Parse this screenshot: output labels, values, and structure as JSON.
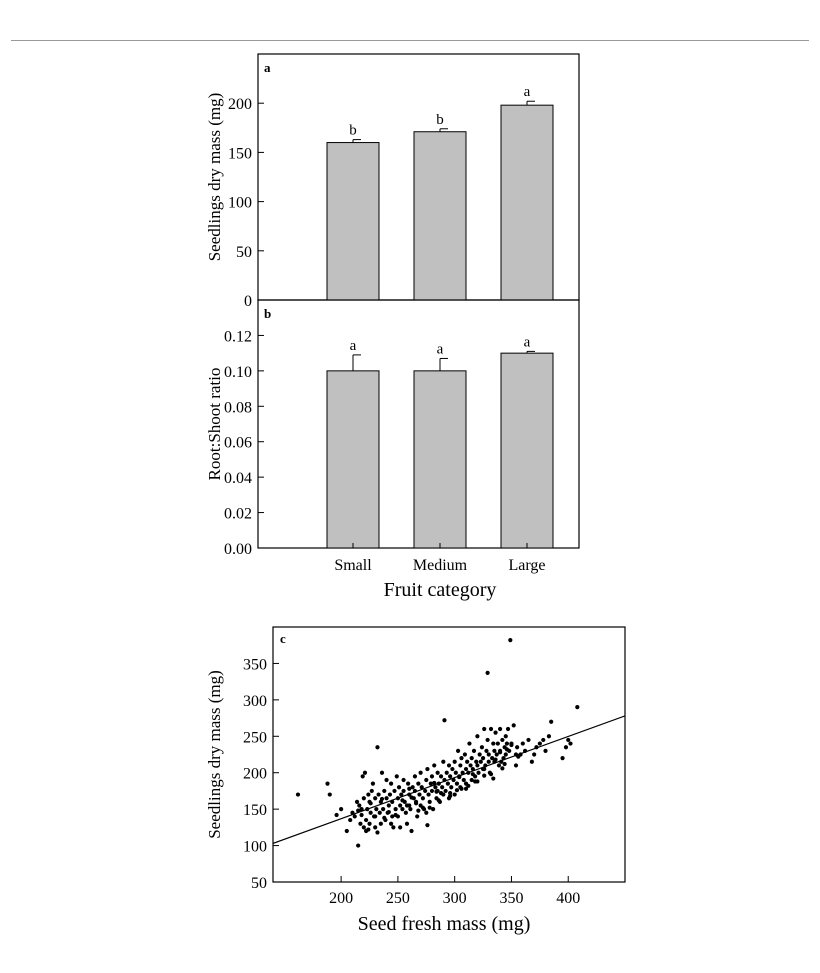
{
  "chart_data": [
    {
      "type": "bar",
      "panel_label": "a",
      "categories": [
        "Small",
        "Medium",
        "Large"
      ],
      "values": [
        160,
        171,
        198
      ],
      "errors": [
        3,
        3,
        4
      ],
      "letters": [
        "b",
        "b",
        "a"
      ],
      "ylabel": "Seedlings dry mass (mg)",
      "ylim": [
        0,
        250
      ],
      "yticks": [
        0,
        50,
        100,
        150,
        200
      ]
    },
    {
      "type": "bar",
      "panel_label": "b",
      "categories": [
        "Small",
        "Medium",
        "Large"
      ],
      "values": [
        0.1,
        0.1,
        0.11
      ],
      "errors": [
        0.009,
        0.007,
        0.001
      ],
      "letters": [
        "a",
        "a",
        "a"
      ],
      "ylabel": "Root:Shoot ratio",
      "xlabel": "Fruit category",
      "ylim": [
        0,
        0.14
      ],
      "yticks": [
        "0.00",
        "0.02",
        "0.04",
        "0.06",
        "0.08",
        "0.10",
        "0.12"
      ]
    },
    {
      "type": "scatter",
      "panel_label": "c",
      "xlabel": "Seed fresh mass (mg)",
      "ylabel": "Seedlings dry mass (mg)",
      "xlim": [
        140,
        450
      ],
      "ylim": [
        50,
        400
      ],
      "xticks": [
        200,
        250,
        300,
        350,
        400
      ],
      "yticks": [
        50,
        100,
        150,
        200,
        250,
        300,
        350
      ],
      "fit_line": {
        "x": [
          140,
          450
        ],
        "y": [
          103,
          278
        ]
      },
      "x": [
        162,
        188,
        190,
        196,
        200,
        205,
        208,
        210,
        212,
        214,
        215,
        216,
        217,
        218,
        219,
        220,
        220,
        221,
        222,
        223,
        224,
        225,
        225,
        226,
        227,
        228,
        229,
        230,
        230,
        231,
        232,
        233,
        234,
        235,
        235,
        236,
        237,
        238,
        239,
        240,
        240,
        241,
        242,
        243,
        244,
        245,
        245,
        246,
        247,
        248,
        249,
        250,
        250,
        251,
        252,
        253,
        254,
        255,
        255,
        256,
        257,
        258,
        259,
        260,
        260,
        261,
        262,
        263,
        264,
        265,
        265,
        266,
        267,
        268,
        269,
        270,
        270,
        271,
        272,
        273,
        274,
        275,
        275,
        276,
        277,
        278,
        279,
        280,
        280,
        281,
        282,
        283,
        284,
        285,
        285,
        286,
        287,
        288,
        289,
        290,
        290,
        291,
        292,
        293,
        294,
        295,
        295,
        296,
        297,
        298,
        299,
        300,
        300,
        301,
        302,
        303,
        304,
        305,
        305,
        306,
        307,
        308,
        309,
        310,
        310,
        311,
        312,
        313,
        314,
        315,
        315,
        316,
        317,
        318,
        319,
        320,
        320,
        321,
        322,
        323,
        324,
        325,
        325,
        326,
        327,
        328,
        329,
        330,
        330,
        331,
        332,
        333,
        334,
        335,
        335,
        336,
        337,
        338,
        339,
        340,
        340,
        341,
        342,
        343,
        344,
        345,
        345,
        346,
        347,
        348,
        350,
        352,
        354,
        355,
        358,
        360,
        362,
        365,
        368,
        370,
        372,
        375,
        378,
        380,
        383,
        385,
        395,
        398,
        400,
        402,
        408,
        222,
        230,
        232,
        244,
        252,
        258,
        268,
        276,
        286,
        296,
        306,
        316,
        326,
        336,
        346,
        349,
        291,
        329,
        340,
        215,
        238,
        262,
        284,
        312,
        334,
        356,
        224,
        248,
        272,
        296,
        320,
        344,
        226,
        254,
        278,
        302,
        326,
        350,
        218,
        242,
        266,
        288,
        310,
        332,
        354,
        236,
        260,
        282,
        304,
        318,
        342
      ],
      "y": [
        170,
        185,
        170,
        142,
        150,
        120,
        135,
        145,
        140,
        160,
        100,
        155,
        130,
        150,
        195,
        165,
        125,
        200,
        135,
        150,
        170,
        160,
        130,
        145,
        175,
        185,
        140,
        165,
        125,
        150,
        235,
        170,
        145,
        160,
        130,
        200,
        150,
        175,
        135,
        165,
        190,
        145,
        155,
        170,
        185,
        140,
        160,
        125,
        175,
        150,
        195,
        165,
        140,
        180,
        155,
        170,
        150,
        175,
        190,
        160,
        145,
        130,
        185,
        170,
        155,
        150,
        120,
        180,
        165,
        175,
        195,
        160,
        140,
        185,
        170,
        155,
        200,
        180,
        165,
        150,
        175,
        190,
        145,
        205,
        170,
        160,
        185,
        175,
        195,
        150,
        210,
        180,
        165,
        200,
        175,
        185,
        160,
        195,
        180,
        170,
        215,
        190,
        175,
        200,
        185,
        165,
        210,
        195,
        180,
        205,
        190,
        170,
        215,
        200,
        185,
        230,
        195,
        180,
        210,
        220,
        200,
        190,
        225,
        205,
        185,
        215,
        200,
        240,
        210,
        190,
        220,
        205,
        230,
        195,
        215,
        210,
        250,
        200,
        225,
        215,
        235,
        205,
        220,
        260,
        210,
        230,
        245,
        215,
        225,
        200,
        260,
        220,
        240,
        230,
        215,
        255,
        225,
        240,
        210,
        260,
        230,
        215,
        245,
        220,
        235,
        250,
        225,
        240,
        260,
        230,
        240,
        265,
        225,
        235,
        225,
        240,
        230,
        245,
        215,
        225,
        235,
        240,
        245,
        230,
        250,
        270,
        220,
        235,
        245,
        240,
        290,
        120,
        140,
        118,
        130,
        125,
        155,
        148,
        128,
        162,
        172,
        178,
        198,
        205,
        218,
        232,
        382,
        272,
        337,
        228,
        148,
        138,
        166,
        174,
        182,
        192,
        222,
        122,
        142,
        152,
        168,
        188,
        212,
        158,
        162,
        152,
        176,
        196,
        238,
        142,
        146,
        158,
        172,
        178,
        198,
        210,
        164,
        178,
        186,
        194,
        188,
        206
      ]
    }
  ]
}
